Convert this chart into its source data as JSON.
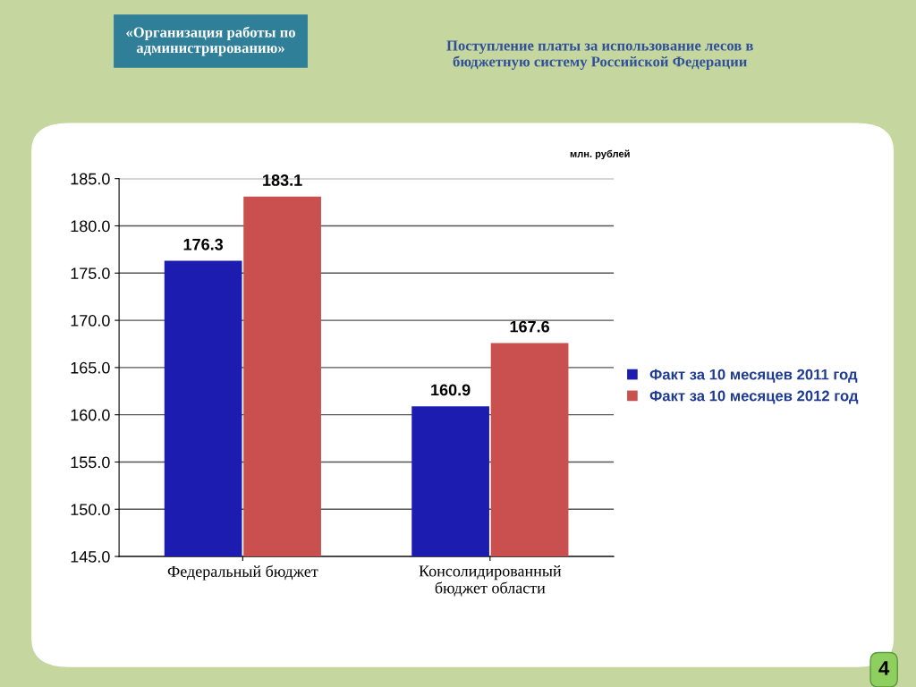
{
  "chart_data": {
    "type": "bar",
    "title": "Поступление платы за использование лесов в\nбюджетную систему Российской Федерации",
    "annotations": [
      "«Организация работы по\nадминистрированию»",
      "млн. рублей",
      "4"
    ],
    "categories": [
      "Федеральный бюджет",
      "Консолидированный\nбюджет области"
    ],
    "series": [
      {
        "name": "Факт за 10 месяцев 2011 год",
        "color": "#1c1cb0",
        "values": [
          176.3,
          160.9
        ]
      },
      {
        "name": "Факт за 10 месяцев 2012 год",
        "color": "#c9504f",
        "values": [
          183.1,
          167.6
        ]
      }
    ],
    "ylim": [
      145,
      185
    ],
    "yticks": [
      {
        "value": 145,
        "label": "145.0"
      },
      {
        "value": 150,
        "label": "150.0"
      },
      {
        "value": 155,
        "label": "155.0"
      },
      {
        "value": 160,
        "label": "160.0"
      },
      {
        "value": 165,
        "label": "165.0"
      },
      {
        "value": 170,
        "label": "170.0"
      },
      {
        "value": 175,
        "label": "175.0"
      },
      {
        "value": 180,
        "label": "180.0"
      },
      {
        "value": 185,
        "label": "185.0"
      }
    ],
    "grid": "y",
    "legend": "right",
    "data_labels": true
  }
}
